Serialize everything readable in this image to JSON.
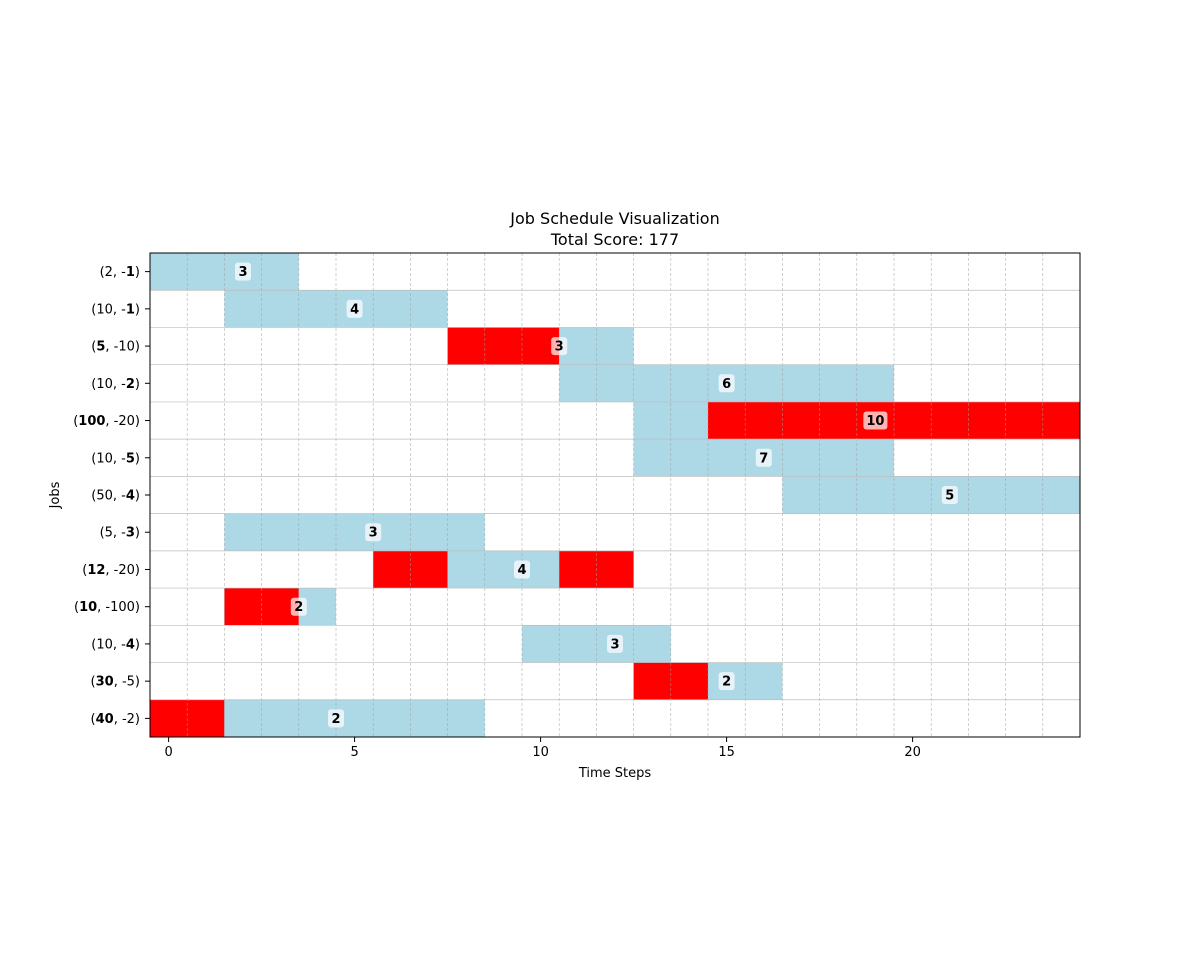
{
  "chart_data": {
    "type": "gantt",
    "title": "Job Schedule Visualization",
    "subtitle": "Total Score: 177",
    "xlabel": "Time Steps",
    "ylabel": "Jobs",
    "xlim": [
      -0.5,
      24.5
    ],
    "x_ticks": [
      0,
      5,
      10,
      15,
      20
    ],
    "grid": true,
    "colors": {
      "normal": "#add8e6",
      "late": "#ff0000"
    },
    "jobs": [
      {
        "label_parts": [
          {
            "t": "(2, -",
            "b": false
          },
          {
            "t": "1",
            "b": true
          },
          {
            "t": ")",
            "b": false
          }
        ],
        "segments": [
          {
            "start": 0,
            "end": 3,
            "color": "normal"
          }
        ],
        "duration_label": "3",
        "label_x": 2
      },
      {
        "label_parts": [
          {
            "t": "(10, -",
            "b": false
          },
          {
            "t": "1",
            "b": true
          },
          {
            "t": ")",
            "b": false
          }
        ],
        "segments": [
          {
            "start": 2,
            "end": 7,
            "color": "normal"
          }
        ],
        "duration_label": "4",
        "label_x": 5
      },
      {
        "label_parts": [
          {
            "t": "(",
            "b": false
          },
          {
            "t": "5",
            "b": true
          },
          {
            "t": ", -10)",
            "b": false
          }
        ],
        "segments": [
          {
            "start": 8,
            "end": 10,
            "color": "late"
          },
          {
            "start": 11,
            "end": 12,
            "color": "normal"
          }
        ],
        "duration_label": "3",
        "label_x": 10.5
      },
      {
        "label_parts": [
          {
            "t": "(10, -",
            "b": false
          },
          {
            "t": "2",
            "b": true
          },
          {
            "t": ")",
            "b": false
          }
        ],
        "segments": [
          {
            "start": 11,
            "end": 19,
            "color": "normal"
          }
        ],
        "duration_label": "6",
        "label_x": 15
      },
      {
        "label_parts": [
          {
            "t": "(",
            "b": false
          },
          {
            "t": "100",
            "b": true
          },
          {
            "t": ", -20)",
            "b": false
          }
        ],
        "segments": [
          {
            "start": 13,
            "end": 14,
            "color": "normal"
          },
          {
            "start": 15,
            "end": 24,
            "color": "late"
          }
        ],
        "duration_label": "10",
        "label_x": 19
      },
      {
        "label_parts": [
          {
            "t": "(10, -",
            "b": false
          },
          {
            "t": "5",
            "b": true
          },
          {
            "t": ")",
            "b": false
          }
        ],
        "segments": [
          {
            "start": 13,
            "end": 19,
            "color": "normal"
          }
        ],
        "duration_label": "7",
        "label_x": 16
      },
      {
        "label_parts": [
          {
            "t": "(50, -",
            "b": false
          },
          {
            "t": "4",
            "b": true
          },
          {
            "t": ")",
            "b": false
          }
        ],
        "segments": [
          {
            "start": 17,
            "end": 24,
            "color": "normal"
          }
        ],
        "duration_label": "5",
        "label_x": 21
      },
      {
        "label_parts": [
          {
            "t": "(5, -",
            "b": false
          },
          {
            "t": "3",
            "b": true
          },
          {
            "t": ")",
            "b": false
          }
        ],
        "segments": [
          {
            "start": 2,
            "end": 8,
            "color": "normal"
          }
        ],
        "duration_label": "3",
        "label_x": 5.5
      },
      {
        "label_parts": [
          {
            "t": "(",
            "b": false
          },
          {
            "t": "12",
            "b": true
          },
          {
            "t": ", -20)",
            "b": false
          }
        ],
        "segments": [
          {
            "start": 6,
            "end": 7,
            "color": "late"
          },
          {
            "start": 8,
            "end": 10,
            "color": "normal"
          },
          {
            "start": 11,
            "end": 12,
            "color": "late"
          }
        ],
        "duration_label": "4",
        "label_x": 9.5
      },
      {
        "label_parts": [
          {
            "t": "(",
            "b": false
          },
          {
            "t": "10",
            "b": true
          },
          {
            "t": ", -100)",
            "b": false
          }
        ],
        "segments": [
          {
            "start": 2,
            "end": 3,
            "color": "late"
          },
          {
            "start": 4,
            "end": 4,
            "color": "normal"
          }
        ],
        "duration_label": "2",
        "label_x": 3.5
      },
      {
        "label_parts": [
          {
            "t": "(10, -",
            "b": false
          },
          {
            "t": "4",
            "b": true
          },
          {
            "t": ")",
            "b": false
          }
        ],
        "segments": [
          {
            "start": 10,
            "end": 13,
            "color": "normal"
          }
        ],
        "duration_label": "3",
        "label_x": 12
      },
      {
        "label_parts": [
          {
            "t": "(",
            "b": false
          },
          {
            "t": "30",
            "b": true
          },
          {
            "t": ", -5)",
            "b": false
          }
        ],
        "segments": [
          {
            "start": 13,
            "end": 14,
            "color": "late"
          },
          {
            "start": 15,
            "end": 16,
            "color": "normal"
          }
        ],
        "duration_label": "2",
        "label_x": 15
      },
      {
        "label_parts": [
          {
            "t": "(",
            "b": false
          },
          {
            "t": "40",
            "b": true
          },
          {
            "t": ", -2)",
            "b": false
          }
        ],
        "segments": [
          {
            "start": 0,
            "end": 1,
            "color": "late"
          },
          {
            "start": 2,
            "end": 8,
            "color": "normal"
          }
        ],
        "duration_label": "2",
        "label_x": 4.5
      }
    ]
  }
}
